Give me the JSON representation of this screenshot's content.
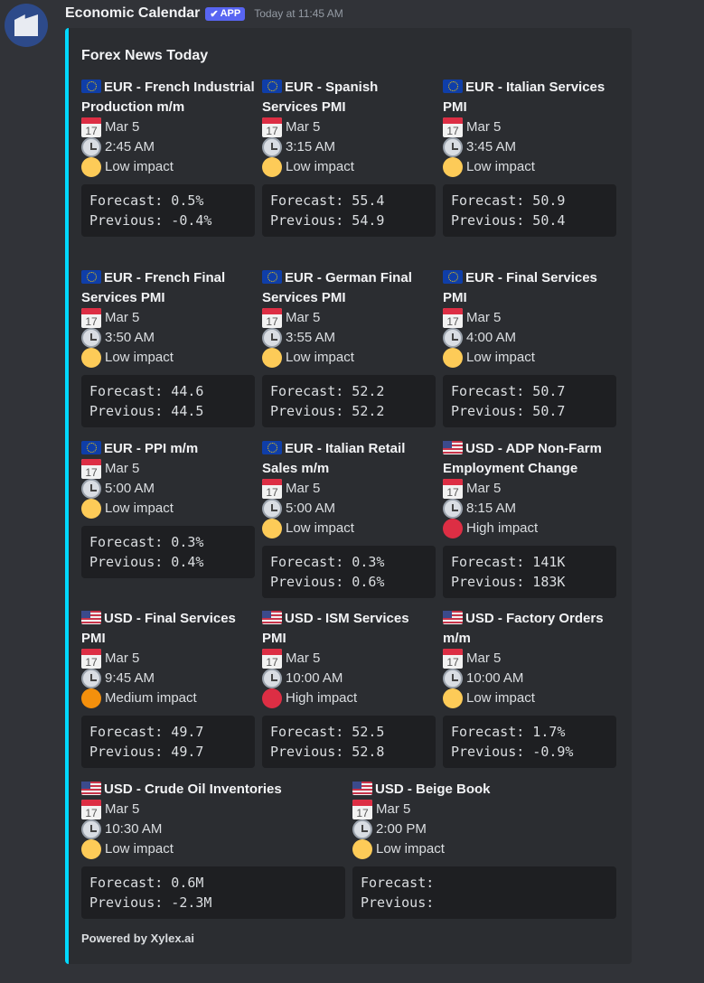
{
  "message": {
    "bot_name": "Economic Calendar",
    "badge": "APP",
    "badge_check": "✔",
    "timestamp": "Today at 11:45 AM"
  },
  "embed": {
    "accent_color": "#00d9ff",
    "title": "Forex News Today",
    "footer": "Powered by Xylex.ai",
    "events": [
      {
        "flag": "eu",
        "name": "EUR - French Industrial Production m/m",
        "date": "Mar 5",
        "time": "2:45 AM",
        "impact": "Low impact",
        "impact_color": "#fdcb58",
        "forecast": "Forecast: 0.5%",
        "previous": "Previous: -0.4%"
      },
      {
        "flag": "eu",
        "name": "EUR - Spanish Services PMI",
        "date": "Mar 5",
        "time": "3:15 AM",
        "impact": "Low impact",
        "impact_color": "#fdcb58",
        "forecast": "Forecast: 55.4",
        "previous": "Previous: 54.9"
      },
      {
        "flag": "eu",
        "name": "EUR - Italian Services PMI",
        "date": "Mar 5",
        "time": "3:45 AM",
        "impact": "Low impact",
        "impact_color": "#fdcb58",
        "forecast": "Forecast: 50.9",
        "previous": "Previous: 50.4"
      },
      {
        "flag": "eu",
        "name": "EUR - French Final Services PMI",
        "date": "Mar 5",
        "time": "3:50 AM",
        "impact": "Low impact",
        "impact_color": "#fdcb58",
        "forecast": "Forecast: 44.6",
        "previous": "Previous: 44.5"
      },
      {
        "flag": "eu",
        "name": "EUR - German Final Services PMI",
        "date": "Mar 5",
        "time": "3:55 AM",
        "impact": "Low impact",
        "impact_color": "#fdcb58",
        "forecast": "Forecast: 52.2",
        "previous": "Previous: 52.2"
      },
      {
        "flag": "eu",
        "name": "EUR - Final Services PMI",
        "date": "Mar 5",
        "time": "4:00 AM",
        "impact": "Low impact",
        "impact_color": "#fdcb58",
        "forecast": "Forecast: 50.7",
        "previous": "Previous: 50.7"
      },
      {
        "flag": "eu",
        "name": "EUR - PPI m/m",
        "date": "Mar 5",
        "time": "5:00 AM",
        "impact": "Low impact",
        "impact_color": "#fdcb58",
        "forecast": "Forecast: 0.3%",
        "previous": "Previous: 0.4%"
      },
      {
        "flag": "eu",
        "name": "EUR - Italian Retail Sales m/m",
        "date": "Mar 5",
        "time": "5:00 AM",
        "impact": "Low impact",
        "impact_color": "#fdcb58",
        "forecast": "Forecast: 0.3%",
        "previous": "Previous: 0.6%"
      },
      {
        "flag": "us",
        "name": "USD - ADP Non-Farm Employment Change",
        "date": "Mar 5",
        "time": "8:15 AM",
        "impact": "High impact",
        "impact_color": "#dd2e44",
        "forecast": "Forecast: 141K",
        "previous": "Previous: 183K"
      },
      {
        "flag": "us",
        "name": "USD - Final Services PMI",
        "date": "Mar 5",
        "time": "9:45 AM",
        "impact": "Medium impact",
        "impact_color": "#f4900c",
        "forecast": "Forecast: 49.7",
        "previous": "Previous: 49.7"
      },
      {
        "flag": "us",
        "name": "USD - ISM Services PMI",
        "date": "Mar 5",
        "time": "10:00 AM",
        "impact": "High impact",
        "impact_color": "#dd2e44",
        "forecast": "Forecast: 52.5",
        "previous": "Previous: 52.8"
      },
      {
        "flag": "us",
        "name": "USD - Factory Orders m/m",
        "date": "Mar 5",
        "time": "10:00 AM",
        "impact": "Low impact",
        "impact_color": "#fdcb58",
        "forecast": "Forecast: 1.7%",
        "previous": "Previous: -0.9%"
      },
      {
        "flag": "us",
        "name": "USD - Crude Oil Inventories",
        "date": "Mar 5",
        "time": "10:30 AM",
        "impact": "Low impact",
        "impact_color": "#fdcb58",
        "forecast": "Forecast: 0.6M",
        "previous": "Previous: -2.3M"
      },
      {
        "flag": "us",
        "name": "USD - Beige Book",
        "date": "Mar 5",
        "time": "2:00 PM",
        "impact": "Low impact",
        "impact_color": "#fdcb58",
        "forecast": "Forecast:",
        "previous": "Previous:"
      }
    ]
  }
}
